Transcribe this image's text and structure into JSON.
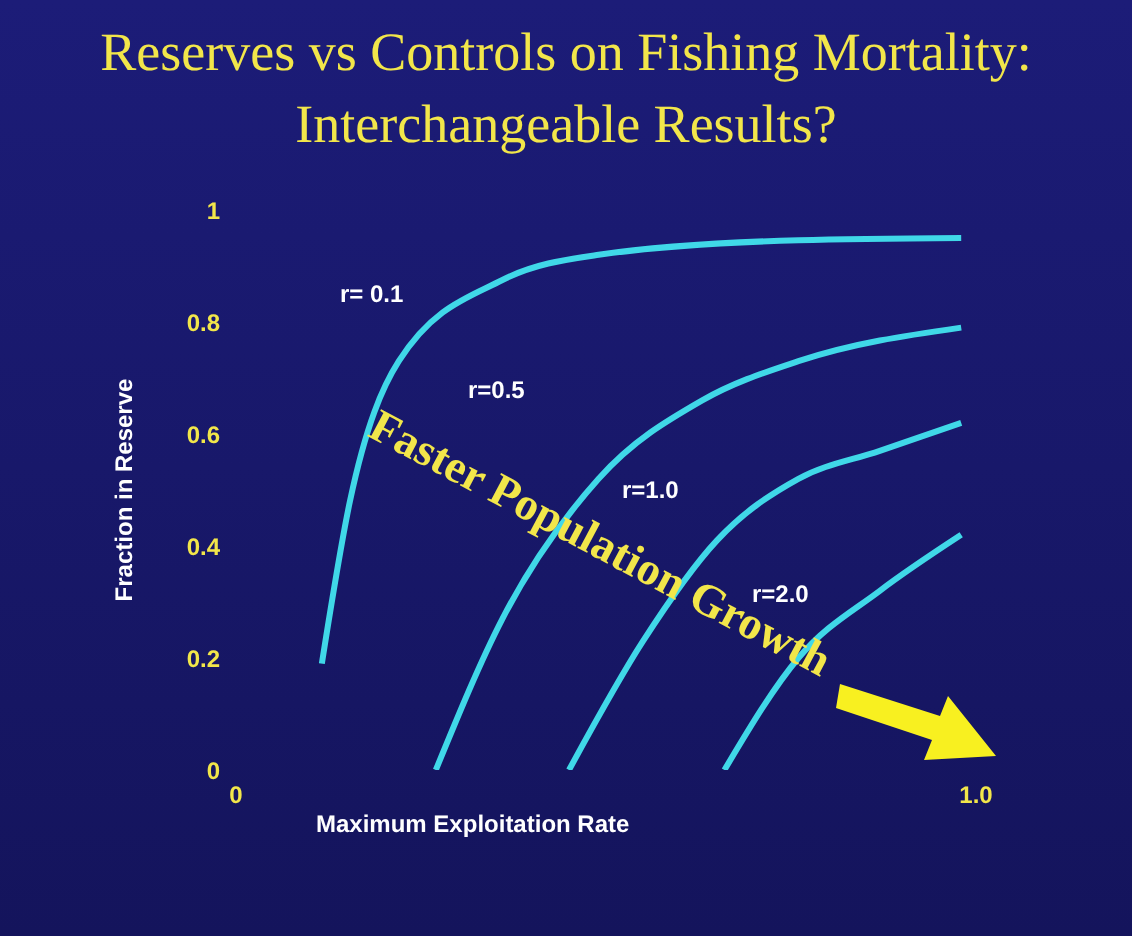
{
  "chart_data": {
    "type": "line",
    "title": "Reserves vs Controls on Fishing Mortality: Interchangeable Results?",
    "xlabel": "Maximum Exploitation Rate",
    "ylabel": "Fraction in Reserve",
    "series": [
      {
        "color": "#40d8e8",
        "x": [
          0.116,
          0.154,
          0.22,
          0.36,
          0.49,
          0.76,
          0.98
        ],
        "values": [
          0.19,
          0.48,
          0.73,
          0.875,
          0.92,
          0.946,
          0.95
        ]
      },
      {
        "color": "#40d8e8",
        "x": [
          0.27,
          0.36,
          0.49,
          0.63,
          0.76,
          0.98
        ],
        "values": [
          0.0,
          0.27,
          0.52,
          0.66,
          0.73,
          0.79
        ]
      },
      {
        "color": "#40d8e8",
        "x": [
          0.45,
          0.55,
          0.65,
          0.76,
          0.87,
          0.98
        ],
        "values": [
          0.0,
          0.23,
          0.41,
          0.52,
          0.57,
          0.62
        ]
      },
      {
        "color": "#40d8e8",
        "x": [
          0.66,
          0.76,
          0.87,
          0.98
        ],
        "values": [
          0.0,
          0.2,
          0.32,
          0.42
        ]
      }
    ],
    "xlim": [
      0,
      1
    ],
    "xticks": [
      0,
      {
        "value": 1,
        "label": "1.0"
      }
    ],
    "ylim": [
      0,
      1
    ],
    "yticks": [
      0,
      0.2,
      0.4,
      0.6,
      0.8,
      1
    ],
    "grid": false,
    "marker": "none",
    "line_style": "solid",
    "annotations": [
      "r= 0.1",
      "r=0.5",
      "r=1.0",
      "r=2.0",
      "Faster Population Growth"
    ]
  }
}
